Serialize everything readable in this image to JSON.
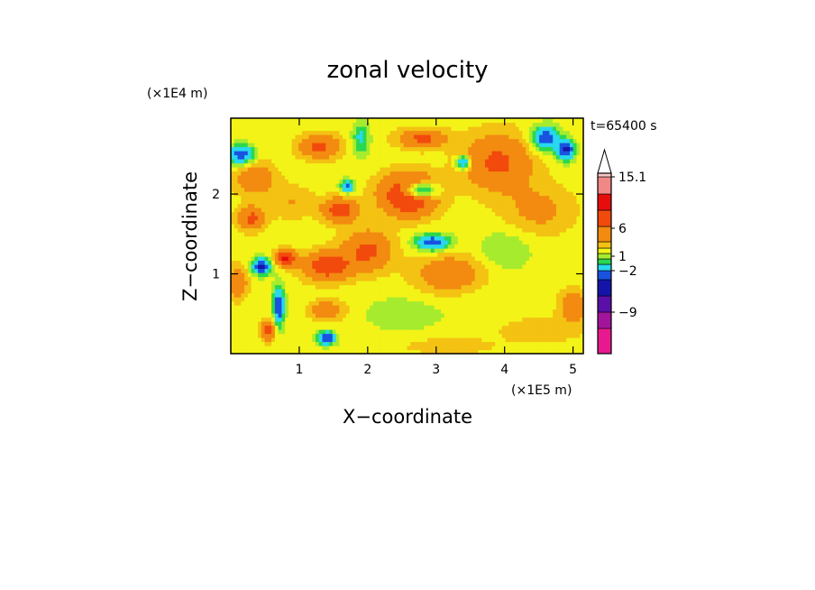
{
  "chart_data": {
    "type": "heatmap",
    "title": "zonal velocity",
    "xlabel": "X−coordinate",
    "ylabel": "Z−coordinate",
    "x_unit": "(×1E5 m)",
    "y_unit": "(×1E4 m)",
    "time_label": "t=65400 s",
    "xlim": [
      0,
      5.15
    ],
    "ylim": [
      0,
      2.95
    ],
    "x_ticks": [
      "1",
      "2",
      "3",
      "4",
      "5"
    ],
    "y_ticks": [
      "1",
      "2"
    ],
    "colorbar": {
      "levels": [
        -15,
        -12,
        -9,
        -6,
        -4,
        -2,
        -1,
        0,
        1,
        2,
        4,
        6,
        9,
        12,
        15.1
      ],
      "labels": [
        "15.1",
        "6",
        "1",
        "−2",
        "−9"
      ],
      "colors": [
        "#e8198e",
        "#a3149d",
        "#5a0fa8",
        "#1414a8",
        "#1a52e0",
        "#27d8ee",
        "#2ad84f",
        "#a6eb2e",
        "#f3f318",
        "#f3c212",
        "#f28b10",
        "#f24a0d",
        "#e60d0d",
        "#f08888",
        "#f8c6c6"
      ],
      "extend": "max"
    },
    "blobs": [
      {
        "x": 0.15,
        "z": 2.5,
        "rx": 0.18,
        "rz": 0.12,
        "v": -6
      },
      {
        "x": 0.45,
        "z": 1.1,
        "rx": 0.14,
        "rz": 0.1,
        "v": -7
      },
      {
        "x": 0.7,
        "z": 0.6,
        "rx": 0.08,
        "rz": 0.25,
        "v": -6
      },
      {
        "x": 0.55,
        "z": 0.3,
        "rx": 0.1,
        "rz": 0.12,
        "v": 5
      },
      {
        "x": 0.8,
        "z": 1.2,
        "rx": 0.15,
        "rz": 0.1,
        "v": 6
      },
      {
        "x": 0.35,
        "z": 2.2,
        "rx": 0.3,
        "rz": 0.2,
        "v": 3
      },
      {
        "x": 0.9,
        "z": 1.9,
        "rx": 0.35,
        "rz": 0.2,
        "v": 1.5
      },
      {
        "x": 1.3,
        "z": 2.6,
        "rx": 0.3,
        "rz": 0.15,
        "v": 4
      },
      {
        "x": 1.6,
        "z": 1.8,
        "rx": 0.25,
        "rz": 0.15,
        "v": 5
      },
      {
        "x": 1.7,
        "z": 2.1,
        "rx": 0.1,
        "rz": 0.08,
        "v": -5
      },
      {
        "x": 1.4,
        "z": 1.1,
        "rx": 0.35,
        "rz": 0.18,
        "v": 5
      },
      {
        "x": 1.4,
        "z": 0.55,
        "rx": 0.25,
        "rz": 0.12,
        "v": 3
      },
      {
        "x": 1.4,
        "z": 0.2,
        "rx": 0.12,
        "rz": 0.08,
        "v": -7
      },
      {
        "x": 2.6,
        "z": 2.0,
        "rx": 0.4,
        "rz": 0.25,
        "v": 7
      },
      {
        "x": 2.8,
        "z": 2.7,
        "rx": 0.35,
        "rz": 0.12,
        "v": 4
      },
      {
        "x": 2.75,
        "z": 2.05,
        "rx": 0.25,
        "rz": 0.1,
        "v": -8
      },
      {
        "x": 2.95,
        "z": 1.4,
        "rx": 0.25,
        "rz": 0.1,
        "v": -6
      },
      {
        "x": 2.0,
        "z": 1.3,
        "rx": 0.35,
        "rz": 0.25,
        "v": 4
      },
      {
        "x": 3.2,
        "z": 1.0,
        "rx": 0.5,
        "rz": 0.25,
        "v": 3
      },
      {
        "x": 2.5,
        "z": 0.5,
        "rx": 0.5,
        "rz": 0.2,
        "v": -1.5
      },
      {
        "x": 3.6,
        "z": 0.6,
        "rx": 0.6,
        "rz": 0.3,
        "v": -0.5
      },
      {
        "x": 3.9,
        "z": 2.4,
        "rx": 0.5,
        "rz": 0.35,
        "v": 4
      },
      {
        "x": 4.5,
        "z": 1.8,
        "rx": 0.5,
        "rz": 0.3,
        "v": 2
      },
      {
        "x": 4.6,
        "z": 2.7,
        "rx": 0.2,
        "rz": 0.15,
        "v": -6
      },
      {
        "x": 4.9,
        "z": 2.55,
        "rx": 0.12,
        "rz": 0.12,
        "v": -7
      },
      {
        "x": 3.4,
        "z": 2.4,
        "rx": 0.1,
        "rz": 0.08,
        "v": -6
      },
      {
        "x": 4.0,
        "z": 1.3,
        "rx": 0.4,
        "rz": 0.25,
        "v": -1.5
      },
      {
        "x": 4.5,
        "z": 0.3,
        "rx": 0.6,
        "rz": 0.15,
        "v": 1.5
      },
      {
        "x": 3.2,
        "z": 0.1,
        "rx": 0.6,
        "rz": 0.1,
        "v": 1.5
      },
      {
        "x": 5.0,
        "z": 0.6,
        "rx": 0.2,
        "rz": 0.2,
        "v": 3
      },
      {
        "x": 1.9,
        "z": 2.7,
        "rx": 0.12,
        "rz": 0.2,
        "v": -3
      },
      {
        "x": 0.3,
        "z": 1.7,
        "rx": 0.2,
        "rz": 0.15,
        "v": 4
      },
      {
        "x": 0.1,
        "z": 0.9,
        "rx": 0.15,
        "rz": 0.2,
        "v": 3
      }
    ],
    "background_value": 0.5
  }
}
